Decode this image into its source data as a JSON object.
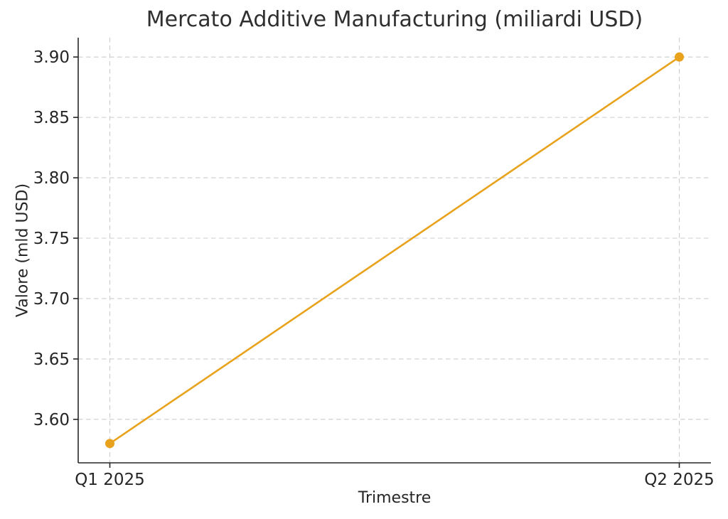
{
  "figure": {
    "background": "#ffffff",
    "title_color": "#2f2f2f",
    "text_color": "#262626"
  },
  "chart_data": {
    "type": "line",
    "title": "Mercato Additive Manufacturing (miliardi USD)",
    "xlabel": "Trimestre",
    "ylabel": "Valore (mld USD)",
    "categories": [
      "Q1 2025",
      "Q2 2025"
    ],
    "series": [
      {
        "name": "Valore",
        "values": [
          3.58,
          3.9
        ],
        "color": "#E8A21C",
        "marker": "circle",
        "line_width": 2.6,
        "marker_radius": 6.5
      }
    ],
    "ylim": [
      3.564,
      3.916
    ],
    "yticks": [
      3.6,
      3.65,
      3.7,
      3.75,
      3.8,
      3.85,
      3.9
    ],
    "ytick_format_decimals": 2,
    "grid": true,
    "grid_style": "dashed",
    "grid_color": "#cccccc",
    "axis_color": "#262626",
    "tick_label_size": 23,
    "legend": "none"
  }
}
